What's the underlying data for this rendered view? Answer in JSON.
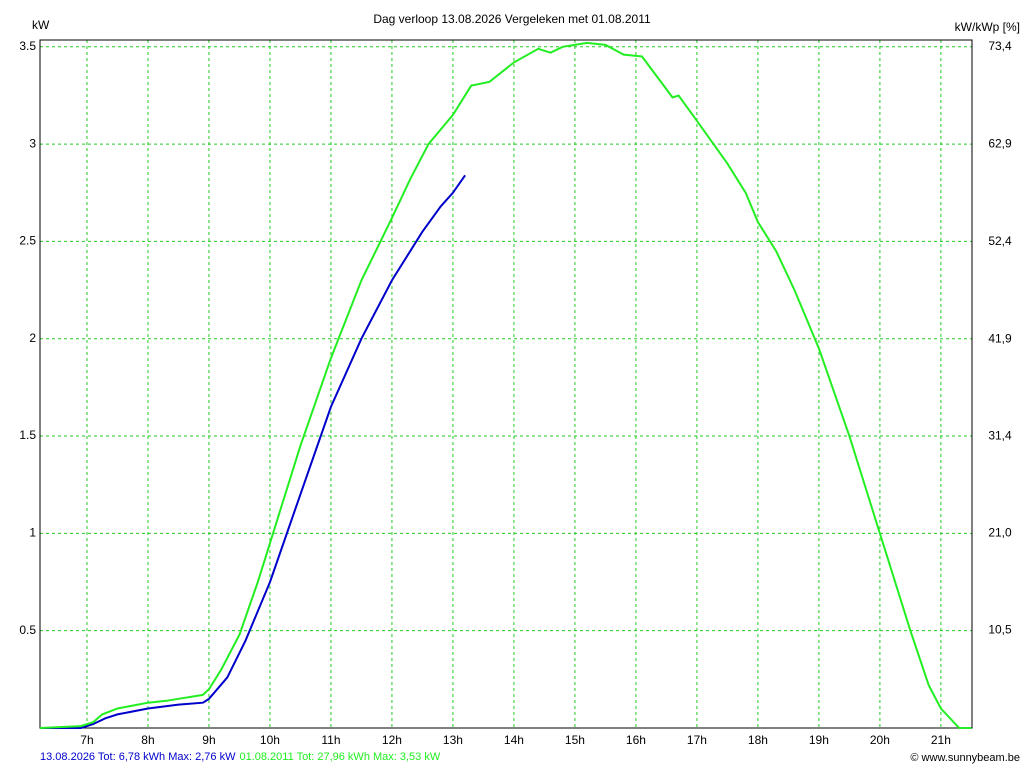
{
  "chart_data": {
    "type": "line",
    "title": "Dag  verloop 13.08.2026   Vergeleken met 01.08.2011",
    "y_label": "kW",
    "y2_label": "kW/kWp [%]",
    "credit": "© www.sunnybeam.be",
    "grid": true,
    "grid_color": "#22cc22",
    "xlim": [
      6.23,
      21.51
    ],
    "xticks": [
      {
        "value": 7,
        "label": "7h"
      },
      {
        "value": 8,
        "label": "8h"
      },
      {
        "value": 9,
        "label": "9h"
      },
      {
        "value": 10,
        "label": "10h"
      },
      {
        "value": 11,
        "label": "11h"
      },
      {
        "value": 12,
        "label": "12h"
      },
      {
        "value": 13,
        "label": "13h"
      },
      {
        "value": 14,
        "label": "14h"
      },
      {
        "value": 15,
        "label": "15h"
      },
      {
        "value": 16,
        "label": "16h"
      },
      {
        "value": 17,
        "label": "17h"
      },
      {
        "value": 18,
        "label": "18h"
      },
      {
        "value": 19,
        "label": "19h"
      },
      {
        "value": 20,
        "label": "20h"
      },
      {
        "value": 21,
        "label": "21h"
      }
    ],
    "ylim": [
      0,
      3.535
    ],
    "yticks": [
      0.5,
      1,
      1.5,
      2,
      2.5,
      3,
      3.5
    ],
    "y2lim": [
      0,
      74.13
    ],
    "y2ticks": [
      {
        "value": 10.5,
        "label": "10,5"
      },
      {
        "value": 21.0,
        "label": "21,0"
      },
      {
        "value": 31.4,
        "label": "31,4"
      },
      {
        "value": 41.9,
        "label": "41,9"
      },
      {
        "value": 52.4,
        "label": "52,4"
      },
      {
        "value": 62.9,
        "label": "62,9"
      },
      {
        "value": 73.4,
        "label": "73,4"
      }
    ],
    "series": [
      {
        "name": "13.08.2026 Tot: 6,78 kWh Max: 2,76 kW",
        "color": "#0000cc",
        "x": [
          6.23,
          6.9,
          7.1,
          7.3,
          7.5,
          8,
          8.5,
          8.9,
          9,
          9.3,
          9.6,
          10,
          10.5,
          11,
          11.5,
          12,
          12.5,
          12.8,
          13,
          13.2
        ],
        "values": [
          0,
          0,
          0.02,
          0.05,
          0.07,
          0.1,
          0.12,
          0.13,
          0.15,
          0.26,
          0.45,
          0.75,
          1.2,
          1.65,
          2.0,
          2.3,
          2.55,
          2.68,
          2.75,
          2.84
        ]
      },
      {
        "name": "01.08.2011 Tot: 27,96 kWh Max: 3,53 kW",
        "color": "#22ee22",
        "x": [
          6.23,
          6.9,
          7.1,
          7.25,
          7.5,
          8,
          8.3,
          8.5,
          8.9,
          9,
          9.2,
          9.5,
          9.8,
          10,
          10.5,
          11,
          11.5,
          12,
          12.3,
          12.6,
          13,
          13.3,
          13.6,
          14,
          14.4,
          14.6,
          14.8,
          15.2,
          15.5,
          15.8,
          16.1,
          16.6,
          16.7,
          17,
          17.5,
          17.8,
          18,
          18.3,
          18.6,
          18.8,
          19,
          19.5,
          20,
          20.5,
          20.8,
          21,
          21.3,
          21.5
        ],
        "values": [
          0,
          0.01,
          0.03,
          0.07,
          0.1,
          0.13,
          0.14,
          0.15,
          0.17,
          0.2,
          0.3,
          0.48,
          0.75,
          0.95,
          1.45,
          1.9,
          2.3,
          2.62,
          2.82,
          3.0,
          3.15,
          3.3,
          3.32,
          3.42,
          3.49,
          3.47,
          3.5,
          3.52,
          3.51,
          3.46,
          3.45,
          3.24,
          3.25,
          3.12,
          2.9,
          2.75,
          2.6,
          2.45,
          2.25,
          2.1,
          1.95,
          1.5,
          1.0,
          0.5,
          0.22,
          0.1,
          0,
          0
        ]
      }
    ]
  }
}
